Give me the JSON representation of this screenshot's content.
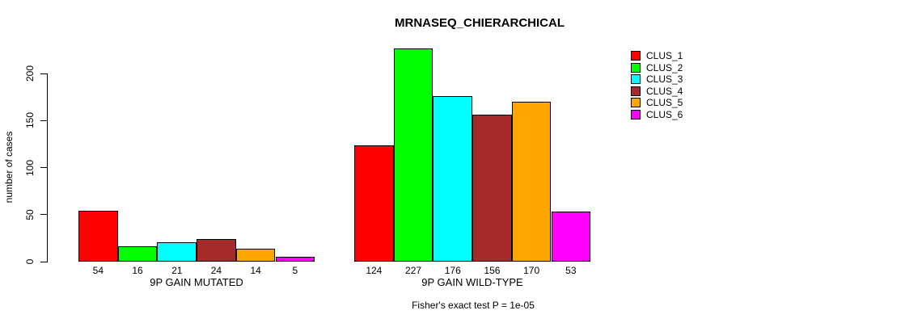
{
  "title": "MRNASEQ_CHIERARCHICAL",
  "caption": "Fisher's exact test P = 1e-05",
  "chart_data": {
    "type": "bar",
    "title": "MRNASEQ_CHIERARCHICAL",
    "xlabel": "",
    "ylabel": "number of cases",
    "ylim": [
      0,
      230
    ],
    "yticks": [
      0,
      50,
      100,
      150,
      200
    ],
    "grid": false,
    "legend_position": "right",
    "categories": [
      "CLUS_1",
      "CLUS_2",
      "CLUS_3",
      "CLUS_4",
      "CLUS_5",
      "CLUS_6"
    ],
    "series": [
      {
        "name": "CLUS_1",
        "color": "#FF0000"
      },
      {
        "name": "CLUS_2",
        "color": "#00FF00"
      },
      {
        "name": "CLUS_3",
        "color": "#00FFFF"
      },
      {
        "name": "CLUS_4",
        "color": "#A52A2A"
      },
      {
        "name": "CLUS_5",
        "color": "#FFA500"
      },
      {
        "name": "CLUS_6",
        "color": "#FF00FF"
      }
    ],
    "groups": [
      {
        "label": "9P GAIN MUTATED",
        "values": [
          54,
          16,
          21,
          24,
          14,
          5
        ]
      },
      {
        "label": "9P GAIN WILD-TYPE",
        "values": [
          124,
          227,
          176,
          156,
          170,
          53
        ]
      }
    ],
    "annotation": "Fisher's exact test P = 1e-05"
  }
}
